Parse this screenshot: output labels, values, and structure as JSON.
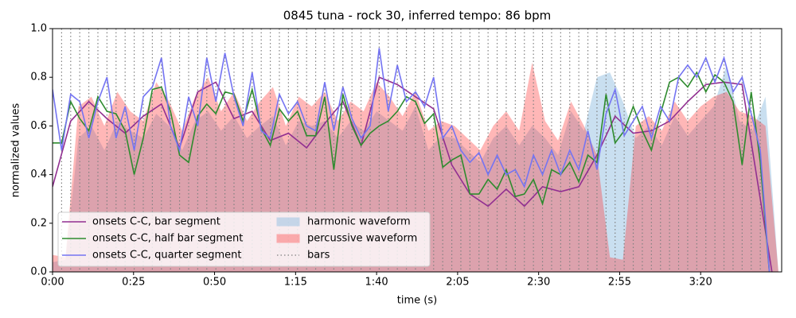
{
  "chart_data": {
    "type": "line",
    "title": "0845 tuna - rock 30, inferred tempo: 86 bpm",
    "xlabel": "time (s)",
    "ylabel": "normalized values",
    "xlim": [
      0,
      225
    ],
    "ylim": [
      0,
      1
    ],
    "xticks": [
      {
        "value": 0,
        "label": "0:00"
      },
      {
        "value": 25,
        "label": "0:25"
      },
      {
        "value": 50,
        "label": "0:50"
      },
      {
        "value": 75,
        "label": "1:15"
      },
      {
        "value": 100,
        "label": "1:40"
      },
      {
        "value": 125,
        "label": "2:05"
      },
      {
        "value": 150,
        "label": "2:30"
      },
      {
        "value": 175,
        "label": "2:55"
      },
      {
        "value": 200,
        "label": "3:20"
      }
    ],
    "yticks": [
      {
        "value": 0,
        "label": "0.0"
      },
      0.2,
      0.4,
      0.6,
      0.8,
      {
        "value": 1,
        "label": "1.0"
      }
    ],
    "legend": "lower left",
    "series": [
      {
        "name": "onsets C-C, bar segment",
        "color": "#912f91",
        "x": [
          0,
          5.6,
          11.2,
          16.8,
          22.4,
          28,
          33.6,
          39.2,
          44.8,
          50.4,
          56,
          61.6,
          67.2,
          72.8,
          78.4,
          84,
          89.6,
          95.2,
          100.8,
          106.4,
          112,
          117.6,
          123.2,
          128.8,
          134.4,
          140,
          145.6,
          151.2,
          156.8,
          162.4,
          168,
          173.6,
          179.2,
          184.8,
          190.4,
          196,
          201.6,
          207.2,
          212.8,
          216,
          222
        ],
        "values": [
          0.35,
          0.62,
          0.7,
          0.63,
          0.57,
          0.64,
          0.69,
          0.51,
          0.74,
          0.78,
          0.63,
          0.66,
          0.54,
          0.57,
          0.51,
          0.61,
          0.7,
          0.52,
          0.8,
          0.77,
          0.72,
          0.67,
          0.44,
          0.32,
          0.27,
          0.34,
          0.27,
          0.35,
          0.33,
          0.35,
          0.48,
          0.64,
          0.57,
          0.58,
          0.62,
          0.7,
          0.77,
          0.78,
          0.77,
          0.5,
          0
        ]
      },
      {
        "name": "onsets C-C, half bar segment",
        "color": "#2e8b2e",
        "x": [
          0,
          2.8,
          5.6,
          8.4,
          11.2,
          14,
          16.8,
          19.6,
          22.4,
          25.2,
          28,
          30.8,
          33.6,
          36.4,
          39.2,
          42,
          44.8,
          47.6,
          50.4,
          53.2,
          56,
          58.8,
          61.6,
          64.4,
          67.2,
          70,
          72.8,
          75.6,
          78.4,
          81.2,
          84,
          86.8,
          89.6,
          92.4,
          95.2,
          98,
          100.8,
          103.6,
          106.4,
          109.2,
          112,
          114.8,
          117.6,
          120.4,
          123.2,
          126,
          128.8,
          131.6,
          134.4,
          137.2,
          140,
          142.8,
          145.6,
          148.4,
          151.2,
          154,
          156.8,
          159.6,
          162.4,
          165.2,
          168,
          170.8,
          173.6,
          176.4,
          179.2,
          182,
          184.8,
          187.6,
          190.4,
          193.2,
          196,
          198.8,
          201.6,
          204.4,
          207.2,
          210,
          212.8,
          215.6,
          218.4,
          221.2
        ],
        "values": [
          0.53,
          0.53,
          0.7,
          0.63,
          0.58,
          0.72,
          0.66,
          0.65,
          0.58,
          0.4,
          0.55,
          0.75,
          0.76,
          0.66,
          0.48,
          0.45,
          0.64,
          0.69,
          0.65,
          0.74,
          0.73,
          0.62,
          0.75,
          0.59,
          0.52,
          0.67,
          0.62,
          0.66,
          0.56,
          0.56,
          0.72,
          0.42,
          0.73,
          0.6,
          0.52,
          0.57,
          0.6,
          0.62,
          0.66,
          0.72,
          0.7,
          0.61,
          0.65,
          0.43,
          0.46,
          0.48,
          0.32,
          0.32,
          0.38,
          0.34,
          0.42,
          0.31,
          0.32,
          0.38,
          0.28,
          0.42,
          0.4,
          0.45,
          0.37,
          0.48,
          0.45,
          0.73,
          0.53,
          0.58,
          0.68,
          0.58,
          0.5,
          0.65,
          0.78,
          0.8,
          0.76,
          0.82,
          0.74,
          0.81,
          0.78,
          0.7,
          0.44,
          0.74,
          0.45,
          0
        ]
      },
      {
        "name": "onsets C-C, quarter segment",
        "color": "#7474f2",
        "x": [
          0,
          2.8,
          5.6,
          8.4,
          11.2,
          14,
          16.8,
          19.6,
          22.4,
          25.2,
          28,
          30.8,
          33.6,
          36.4,
          39.2,
          42,
          44.8,
          47.6,
          50.4,
          53.2,
          56,
          58.8,
          61.6,
          64.4,
          67.2,
          70,
          72.8,
          75.6,
          78.4,
          81.2,
          84,
          86.8,
          89.6,
          92.4,
          95.2,
          98,
          100.8,
          103.6,
          106.4,
          109.2,
          112,
          114.8,
          117.6,
          120.4,
          123.2,
          126,
          128.8,
          131.6,
          134.4,
          137.2,
          140,
          142.8,
          145.6,
          148.4,
          151.2,
          154,
          156.8,
          159.6,
          162.4,
          165.2,
          168,
          170.8,
          173.6,
          176.4,
          179.2,
          182,
          184.8,
          187.6,
          190.4,
          193.2,
          196,
          198.8,
          201.6,
          204.4,
          207.2,
          210,
          212.8,
          215.6,
          218.4,
          221.2
        ],
        "values": [
          0.75,
          0.5,
          0.73,
          0.7,
          0.55,
          0.7,
          0.8,
          0.55,
          0.68,
          0.5,
          0.72,
          0.76,
          0.88,
          0.6,
          0.5,
          0.72,
          0.6,
          0.88,
          0.7,
          0.9,
          0.72,
          0.6,
          0.82,
          0.58,
          0.55,
          0.73,
          0.65,
          0.7,
          0.6,
          0.58,
          0.78,
          0.58,
          0.76,
          0.63,
          0.55,
          0.6,
          0.92,
          0.66,
          0.85,
          0.7,
          0.74,
          0.68,
          0.8,
          0.55,
          0.6,
          0.5,
          0.45,
          0.49,
          0.4,
          0.48,
          0.4,
          0.42,
          0.35,
          0.48,
          0.4,
          0.5,
          0.4,
          0.5,
          0.42,
          0.58,
          0.42,
          0.65,
          0.75,
          0.56,
          0.62,
          0.68,
          0.55,
          0.68,
          0.62,
          0.8,
          0.85,
          0.8,
          0.88,
          0.78,
          0.88,
          0.74,
          0.8,
          0.65,
          0.5,
          0
        ]
      }
    ],
    "areas": [
      {
        "name": "harmonic waveform",
        "color": "#9cc4e4",
        "x": [
          0,
          4,
          8,
          12,
          16,
          20,
          24,
          28,
          32,
          36,
          40,
          44,
          48,
          52,
          56,
          60,
          64,
          68,
          72,
          76,
          80,
          84,
          88,
          92,
          96,
          100,
          104,
          108,
          112,
          116,
          120,
          124,
          128,
          132,
          136,
          140,
          144,
          148,
          152,
          156,
          160,
          164,
          168,
          172,
          176,
          180,
          184,
          188,
          192,
          196,
          200,
          204,
          208,
          212,
          216,
          220,
          224
        ],
        "values": [
          0.04,
          0.05,
          0.55,
          0.6,
          0.5,
          0.62,
          0.58,
          0.55,
          0.65,
          0.6,
          0.5,
          0.62,
          0.66,
          0.58,
          0.64,
          0.55,
          0.6,
          0.64,
          0.52,
          0.62,
          0.6,
          0.62,
          0.55,
          0.62,
          0.58,
          0.66,
          0.62,
          0.58,
          0.68,
          0.5,
          0.56,
          0.55,
          0.5,
          0.45,
          0.55,
          0.6,
          0.52,
          0.6,
          0.55,
          0.48,
          0.66,
          0.58,
          0.8,
          0.82,
          0.7,
          0.55,
          0.6,
          0.52,
          0.64,
          0.56,
          0.62,
          0.68,
          0.85,
          0.62,
          0.58,
          0.72,
          0
        ]
      },
      {
        "name": "percussive waveform",
        "color": "#ff3030",
        "x": [
          0,
          4,
          8,
          12,
          16,
          20,
          24,
          28,
          32,
          36,
          40,
          44,
          48,
          52,
          56,
          60,
          64,
          68,
          72,
          76,
          80,
          84,
          88,
          92,
          96,
          100,
          104,
          108,
          112,
          116,
          120,
          124,
          128,
          132,
          136,
          140,
          144,
          148,
          152,
          156,
          160,
          164,
          168,
          172,
          176,
          180,
          184,
          188,
          192,
          196,
          200,
          204,
          208,
          212,
          216,
          220,
          224
        ],
        "values": [
          0.07,
          0.06,
          0.68,
          0.72,
          0.6,
          0.74,
          0.66,
          0.62,
          0.78,
          0.7,
          0.58,
          0.72,
          0.8,
          0.66,
          0.74,
          0.62,
          0.7,
          0.76,
          0.6,
          0.72,
          0.68,
          0.74,
          0.62,
          0.7,
          0.66,
          0.78,
          0.72,
          0.64,
          0.74,
          0.58,
          0.62,
          0.6,
          0.55,
          0.5,
          0.6,
          0.66,
          0.58,
          0.86,
          0.62,
          0.54,
          0.7,
          0.6,
          0.48,
          0.06,
          0.05,
          0.6,
          0.64,
          0.58,
          0.7,
          0.62,
          0.68,
          0.72,
          0.74,
          0.66,
          0.64,
          0.6,
          0
        ]
      }
    ],
    "bars": {
      "name": "bars",
      "color": "#808080",
      "x": [
        2.8,
        5.6,
        8.4,
        11.2,
        14,
        16.8,
        19.6,
        22.4,
        25.2,
        28,
        30.8,
        33.6,
        36.4,
        39.2,
        42,
        44.8,
        47.6,
        50.4,
        53.2,
        56,
        58.8,
        61.6,
        64.4,
        67.2,
        70,
        72.8,
        75.6,
        78.4,
        81.2,
        84,
        86.8,
        89.6,
        92.4,
        95.2,
        98,
        100.8,
        103.6,
        106.4,
        109.2,
        112,
        114.8,
        117.6,
        120.4,
        123.2,
        126,
        128.8,
        131.6,
        134.4,
        137.2,
        140,
        142.8,
        145.6,
        148.4,
        151.2,
        154,
        156.8,
        159.6,
        162.4,
        165.2,
        168,
        170.8,
        173.6,
        176.4,
        179.2,
        182,
        184.8,
        187.6,
        190.4,
        193.2,
        196,
        198.8,
        201.6,
        204.4,
        207.2,
        210,
        212.8,
        215.6,
        218.4
      ]
    }
  }
}
